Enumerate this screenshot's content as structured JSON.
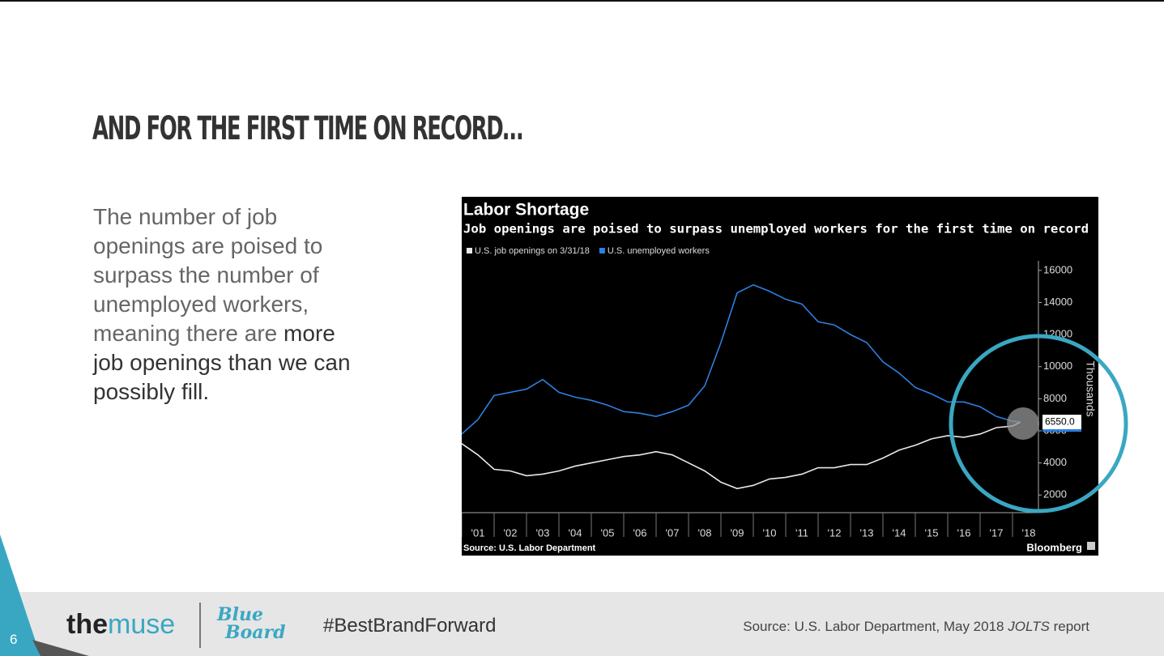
{
  "title": "AND FOR THE FIRST TIME ON RECORD…",
  "body": {
    "text": "The number of job openings are poised to surpass the number of unemployed workers, meaning there are ",
    "emphasis": "more job openings than we can possibly fill."
  },
  "footer": {
    "page_number": "6",
    "brand_1": "the",
    "brand_2": "muse",
    "logo_1": "Blue",
    "logo_2": "Board",
    "hashtag": "#BestBrandForward",
    "source": "Source: U.S. Labor Department, May 2018 ",
    "source_italic": "JOLTS",
    "source_end": " report"
  },
  "chart_data": {
    "type": "line",
    "title": "Labor Shortage",
    "subtitle": "Job openings are poised to surpass unemployed workers for the first time on record",
    "y_label": "Thousands",
    "source": "Source: U.S. Labor Department",
    "credit": "Bloomberg",
    "xlim": [
      2001,
      2018.8
    ],
    "xticks": [
      {
        "value": 2001,
        "label": "'01"
      },
      {
        "value": 2002,
        "label": "'02"
      },
      {
        "value": 2003,
        "label": "'03"
      },
      {
        "value": 2004,
        "label": "'04"
      },
      {
        "value": 2005,
        "label": "'05"
      },
      {
        "value": 2006,
        "label": "'06"
      },
      {
        "value": 2007,
        "label": "'07"
      },
      {
        "value": 2008,
        "label": "'08"
      },
      {
        "value": 2009,
        "label": "'09"
      },
      {
        "value": 2010,
        "label": "'10"
      },
      {
        "value": 2011,
        "label": "'11"
      },
      {
        "value": 2012,
        "label": "'12"
      },
      {
        "value": 2013,
        "label": "'13"
      },
      {
        "value": 2014,
        "label": "'14"
      },
      {
        "value": 2015,
        "label": "'15"
      },
      {
        "value": 2016,
        "label": "'16"
      },
      {
        "value": 2017,
        "label": "'17"
      },
      {
        "value": 2018,
        "label": "'18"
      }
    ],
    "ylim": [
      900,
      16600
    ],
    "yticks": [
      2000,
      4000,
      6000,
      8000,
      10000,
      12000,
      14000,
      16000
    ],
    "x": [
      2001,
      2001.5,
      2002,
      2002.5,
      2003,
      2003.5,
      2004,
      2004.5,
      2005,
      2005.5,
      2006,
      2006.5,
      2007,
      2007.5,
      2008,
      2008.5,
      2009,
      2009.5,
      2010,
      2010.5,
      2011,
      2011.5,
      2012,
      2012.5,
      2013,
      2013.5,
      2014,
      2014.5,
      2015,
      2015.5,
      2016,
      2016.5,
      2017,
      2017.5,
      2018,
      2018.25
    ],
    "series": [
      {
        "name": "U.S. job openings on 3/31/18",
        "color": "#e8e8e8",
        "values": [
          5200,
          4500,
          3600,
          3500,
          3200,
          3300,
          3500,
          3800,
          4000,
          4200,
          4400,
          4500,
          4700,
          4500,
          4000,
          3500,
          2800,
          2400,
          2600,
          3000,
          3100,
          3300,
          3700,
          3700,
          3900,
          3900,
          4300,
          4800,
          5100,
          5500,
          5700,
          5600,
          5800,
          6200,
          6300,
          6550
        ],
        "value_labels": [
          null,
          null,
          null,
          null,
          null,
          null,
          null,
          null,
          null,
          null,
          null,
          null,
          null,
          null,
          null,
          null,
          null,
          null,
          null,
          null,
          null,
          null,
          null,
          null,
          null,
          null,
          null,
          null,
          null,
          null,
          null,
          null,
          null,
          null,
          null,
          "6550.0"
        ]
      },
      {
        "name": "U.S. unemployed workers",
        "color": "#2d7fe0",
        "values": [
          5800,
          6700,
          8200,
          8400,
          8600,
          9200,
          8400,
          8100,
          7900,
          7600,
          7200,
          7100,
          6900,
          7200,
          7600,
          8800,
          11500,
          14600,
          15100,
          14700,
          14200,
          13900,
          12800,
          12600,
          12000,
          11500,
          10300,
          9600,
          8700,
          8300,
          7800,
          7800,
          7500,
          6900,
          6600,
          6550
        ]
      }
    ]
  }
}
